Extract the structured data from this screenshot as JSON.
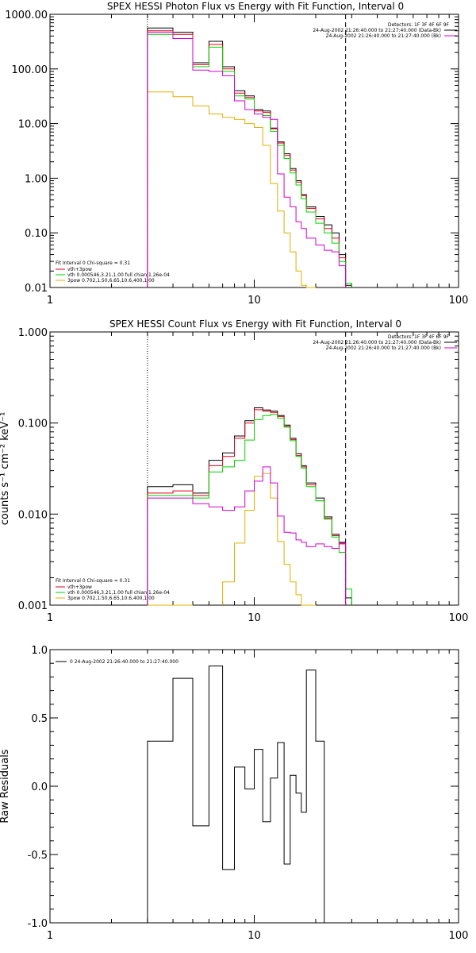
{
  "panels": [
    {
      "title": "SPEX HESSI Photon Flux vs Energy with Fit Function, Interval 0",
      "ylabel": "",
      "info_lines": [
        "Detectors: 1F 3F 4F 6F 9F",
        "24-Aug-2002 21:26:40.000 to 21:27:40.000 (Data-Bk)",
        "24-Aug-2002 21:26:40.000 to 21:27:40.000 (Bk)"
      ],
      "fit_lines": [
        "Fit Interval 0   Chi-square = 0.31",
        "vth+3pow",
        "vth 0.000546,3.21,1.00  full chian 1.26e-04",
        "3pow 0.702,1.50,6.65,10.6,400,1.00"
      ]
    },
    {
      "title": "SPEX HESSI Count Flux vs Energy with Fit Function, Interval 0",
      "ylabel": "counts s⁻¹ cm⁻² keV⁻¹",
      "info_lines": [
        "Detectors: 1F 3F 4F 6F 9F",
        "24-Aug-2002 21:26:40.000 to 21:27:40.000 (Data-Bk)",
        "24-Aug-2002 21:26:40.000 to 21:27:40.000 (Bk)"
      ],
      "fit_lines": [
        "Fit Interval 0   Chi-square = 0.31",
        "vth+3pow",
        "vth 0.000546,3.21,1.00  full chian 1.26e-04",
        "3pow 0.702,1.50,6.65,10.6,400,1.00"
      ]
    },
    {
      "title": "",
      "ylabel": "Raw Residuals",
      "legend_text": "0  24-Aug-2002 21:26:40.000 to 21:27:40.000"
    }
  ],
  "colors": {
    "data": "#000000",
    "total_fit": "#e0001a",
    "vth": "#00d400",
    "pow": "#e0b000",
    "background": "#d000d0"
  },
  "chart_data": [
    {
      "type": "line",
      "title": "SPEX HESSI Photon Flux vs Energy with Fit Function, Interval 0",
      "xscale": "log",
      "yscale": "log",
      "xlim": [
        1,
        100
      ],
      "ylim": [
        0.01,
        1000
      ],
      "xticks": [
        "1",
        "10",
        "100"
      ],
      "yticks": [
        "0.01",
        "0.10",
        "1.00",
        "10.00",
        "100.00",
        "1000.00"
      ],
      "vlines": [
        3,
        28
      ],
      "bin_edges": [
        3,
        4,
        5,
        6,
        7,
        8,
        9,
        10,
        11,
        12,
        13,
        14,
        15,
        16,
        17,
        18,
        20,
        22,
        24,
        26,
        28,
        30
      ],
      "series": [
        {
          "name": "data",
          "color": "#000000",
          "values": [
            560,
            470,
            130,
            320,
            110,
            40,
            32,
            18,
            17,
            8.3,
            4.6,
            2.8,
            1.5,
            0.9,
            0.5,
            0.3,
            0.2,
            0.14,
            0.1,
            0.04,
            0.011
          ]
        },
        {
          "name": "vth+3pow",
          "color": "#e0001a",
          "values": [
            500,
            430,
            120,
            280,
            100,
            36,
            30,
            17,
            16,
            8,
            4.4,
            2.6,
            1.4,
            0.85,
            0.48,
            0.28,
            0.18,
            0.12,
            0.08,
            0.035,
            null
          ]
        },
        {
          "name": "vth",
          "color": "#00d400",
          "values": [
            430,
            360,
            110,
            250,
            90,
            32,
            28,
            15,
            14,
            7.2,
            4.0,
            2.3,
            1.25,
            0.75,
            0.42,
            0.24,
            0.15,
            0.1,
            0.065,
            0.03,
            0.012
          ]
        },
        {
          "name": "3pow",
          "color": "#e0b000",
          "values": [
            38,
            31,
            21,
            15,
            13,
            12,
            10,
            8.5,
            4,
            0.8,
            0.25,
            0.1,
            0.045,
            0.02,
            0.011,
            0.009,
            null,
            null,
            null,
            null,
            null
          ]
        },
        {
          "name": "Bk",
          "color": "#d000d0",
          "values": [
            470,
            360,
            95,
            90,
            75,
            26,
            18,
            15,
            13,
            12,
            1.2,
            0.45,
            0.3,
            0.16,
            0.12,
            0.08,
            0.06,
            0.048,
            0.045,
            0.025,
            null
          ]
        }
      ]
    },
    {
      "type": "line",
      "title": "SPEX HESSI Count Flux vs Energy with Fit Function, Interval 0",
      "xscale": "log",
      "yscale": "log",
      "xlim": [
        1,
        100
      ],
      "ylim": [
        0.001,
        1
      ],
      "xticks": [
        "1",
        "10",
        "100"
      ],
      "yticks": [
        "0.001",
        "0.010",
        "0.100",
        "1.000"
      ],
      "ylabel": "counts s⁻¹ cm⁻² keV⁻¹",
      "vlines": [
        3,
        28
      ],
      "bin_edges": [
        3,
        4,
        5,
        6,
        7,
        8,
        9,
        10,
        11,
        12,
        13,
        14,
        15,
        16,
        17,
        18,
        20,
        22,
        24,
        26,
        28,
        30
      ],
      "series": [
        {
          "name": "data",
          "color": "#000000",
          "values": [
            0.02,
            0.021,
            0.017,
            0.039,
            0.047,
            0.072,
            0.106,
            0.147,
            0.139,
            0.135,
            0.121,
            0.095,
            0.068,
            0.046,
            0.034,
            0.022,
            0.015,
            0.0093,
            0.006,
            0.0049,
            0.0012
          ]
        },
        {
          "name": "vth+3pow",
          "color": "#e0001a",
          "values": [
            0.017,
            0.018,
            0.016,
            0.034,
            0.043,
            0.068,
            0.1,
            0.14,
            0.135,
            0.131,
            0.118,
            0.092,
            0.066,
            0.044,
            0.033,
            0.021,
            0.014,
            0.009,
            0.0058,
            0.0047,
            null
          ]
        },
        {
          "name": "vth",
          "color": "#00d400",
          "values": [
            0.016,
            0.016,
            0.015,
            0.029,
            0.033,
            0.039,
            0.065,
            0.109,
            0.121,
            0.125,
            0.113,
            0.09,
            0.064,
            0.043,
            0.032,
            0.02,
            0.014,
            0.0088,
            0.0056,
            0.0038,
            0.0015
          ]
        },
        {
          "name": "3pow",
          "color": "#e0b000",
          "values": [
            0.001,
            0.00095,
            null,
            null,
            0.0018,
            0.0048,
            0.011,
            0.026,
            0.028,
            0.015,
            0.005,
            0.0028,
            0.0018,
            0.0013,
            0.001,
            0.0008,
            null,
            null,
            null,
            null,
            null
          ]
        },
        {
          "name": "Bk",
          "color": "#d000d0",
          "values": [
            0.015,
            0.015,
            0.013,
            0.012,
            0.011,
            0.012,
            0.018,
            0.023,
            0.033,
            0.022,
            0.0095,
            0.0063,
            0.0062,
            0.0052,
            0.0049,
            0.0044,
            0.0047,
            0.0044,
            0.0042,
            0.0048,
            null
          ]
        }
      ]
    },
    {
      "type": "line",
      "title": "",
      "xscale": "log",
      "yscale": "linear",
      "xlim": [
        1,
        100
      ],
      "ylim": [
        -1.0,
        1.0
      ],
      "xticks": [
        "1",
        "10",
        "100"
      ],
      "yticks": [
        "-1.0",
        "-0.5",
        "0.0",
        "0.5",
        "1.0"
      ],
      "ylabel": "Raw Residuals",
      "bin_edges": [
        3,
        4,
        5,
        6,
        7,
        8,
        9,
        10,
        11,
        12,
        13,
        14,
        15,
        16,
        17,
        18,
        20,
        22,
        24,
        26,
        28
      ],
      "series": [
        {
          "name": "0  24-Aug-2002 21:26:40.000 to 21:27:40.000",
          "color": "#000000",
          "values": [
            0.33,
            0.79,
            -0.29,
            0.88,
            -0.61,
            0.14,
            -0.02,
            0.27,
            -0.26,
            0.06,
            0.32,
            -0.57,
            0.08,
            -0.05,
            -0.19,
            0.85,
            0.33,
            -1.0,
            -1.0,
            -1.0
          ]
        }
      ]
    }
  ]
}
